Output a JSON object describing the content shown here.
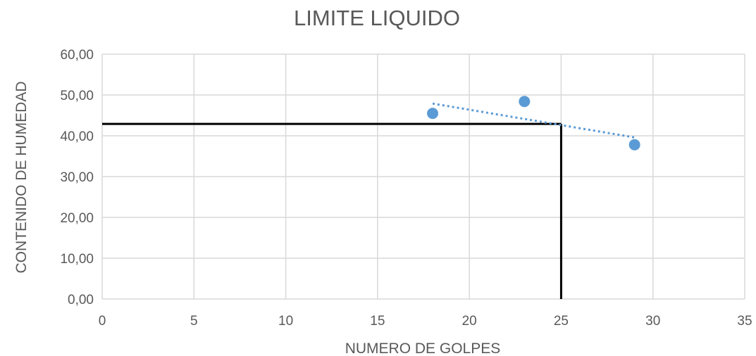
{
  "chart_data": {
    "type": "scatter",
    "title": "LIMITE LIQUIDO",
    "xlabel": "NUMERO DE GOLPES",
    "ylabel": "CONTENIDO DE HUMEDAD",
    "xlim": [
      0,
      35
    ],
    "ylim": [
      0,
      60
    ],
    "x_ticks": [
      "0",
      "5",
      "10",
      "15",
      "20",
      "25",
      "30",
      "35"
    ],
    "y_ticks": [
      "0,00",
      "10,00",
      "20,00",
      "30,00",
      "40,00",
      "50,00",
      "60,00"
    ],
    "grid": true,
    "legend": "none",
    "points": [
      {
        "x": 18,
        "y": 45.5
      },
      {
        "x": 23,
        "y": 48.4
      },
      {
        "x": 29,
        "y": 37.8
      }
    ],
    "trendline": {
      "x": [
        18,
        29
      ],
      "y": [
        47.9,
        39.6
      ]
    },
    "reference_lines": {
      "x": 25,
      "y": 42.9
    },
    "colors": {
      "points": "#5b9bd5",
      "trendline": "#5b9bd5",
      "reference": "#000000",
      "grid": "#d9d9d9",
      "text": "#595959"
    }
  }
}
